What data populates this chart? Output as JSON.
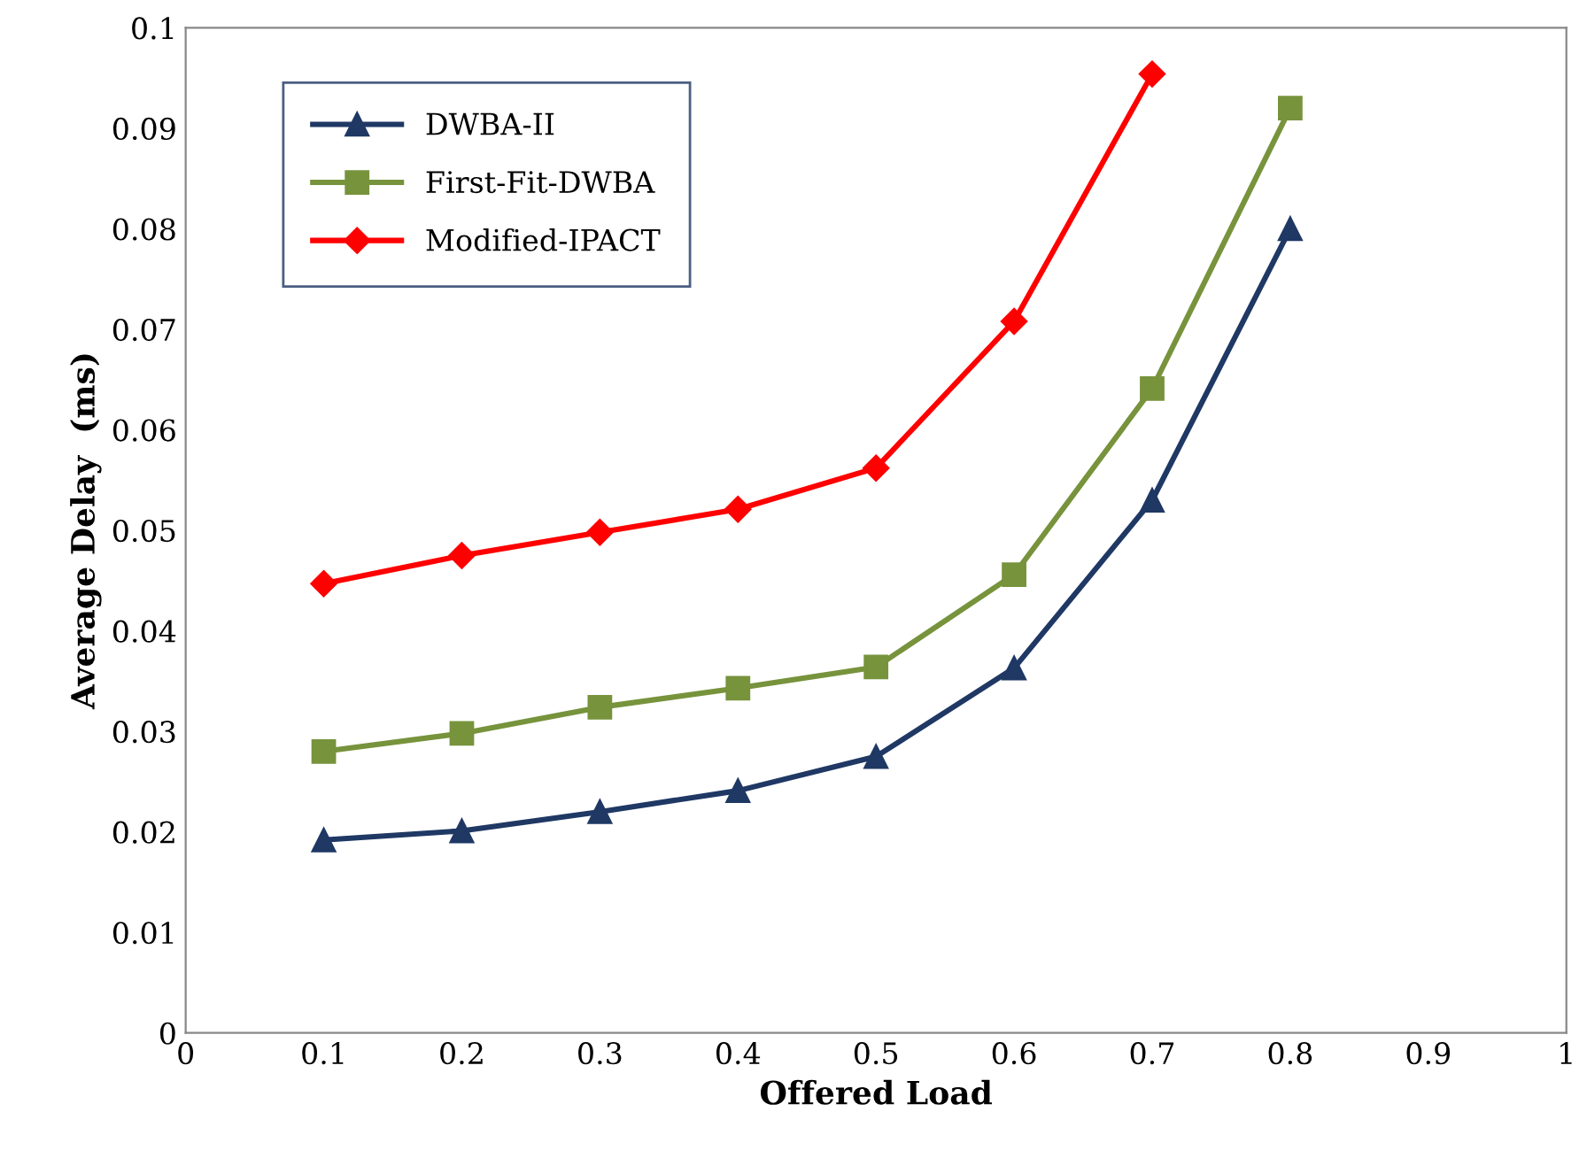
{
  "chart_data": {
    "type": "line",
    "xlabel": "Offered Load",
    "ylabel": "Average Delay  (ms)",
    "x": [
      0.1,
      0.2,
      0.3,
      0.4,
      0.5,
      0.6,
      0.7,
      0.8
    ],
    "series": [
      {
        "name": "DWBA-II",
        "color": "#1f3864",
        "marker": "triangle",
        "values": [
          0.0192,
          0.0201,
          0.022,
          0.0241,
          0.0275,
          0.0363,
          0.053,
          0.08
        ]
      },
      {
        "name": "First-Fit-DWBA",
        "color": "#77933c",
        "marker": "square",
        "values": [
          0.028,
          0.0298,
          0.0324,
          0.0343,
          0.0364,
          0.0456,
          0.0641,
          0.092
        ]
      },
      {
        "name": "Modified-IPACT",
        "color": "#ff0000",
        "marker": "diamond",
        "values": [
          0.0447,
          0.0475,
          0.0498,
          0.0521,
          0.0562,
          0.0708,
          0.0954,
          null
        ]
      }
    ],
    "xlim": [
      0,
      1
    ],
    "xticks": [
      0,
      0.1,
      0.2,
      0.3,
      0.4,
      0.5,
      0.6,
      0.7,
      0.8,
      0.9,
      1
    ],
    "ylim": [
      0,
      0.1
    ],
    "yticks": [
      0,
      0.01,
      0.02,
      0.03,
      0.04,
      0.05,
      0.06,
      0.07,
      0.08,
      0.09,
      0.1
    ],
    "grid": false,
    "legend": "top left",
    "line_style": "solid"
  }
}
